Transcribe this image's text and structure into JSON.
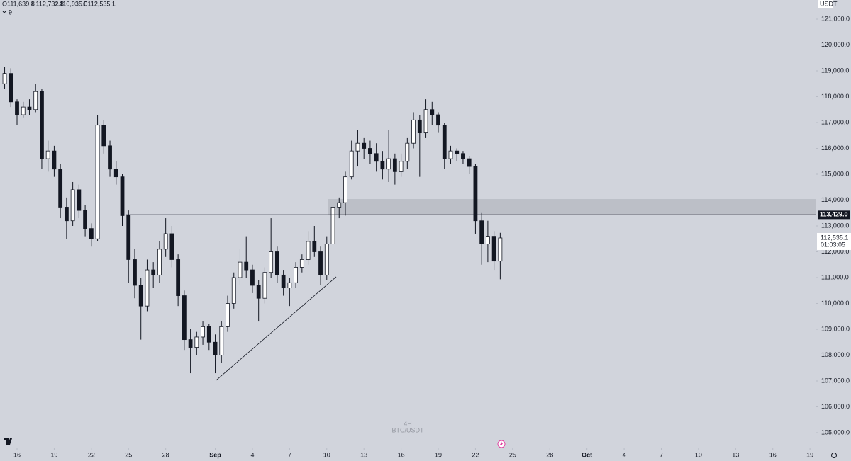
{
  "chart_data": {
    "type": "candlestick",
    "symbol": "BTC/USDT",
    "interval": "4H",
    "currency": "USDT",
    "header": [
      "O111,639.8",
      "H112,732.8",
      "L110,935.0",
      "C112,535.1"
    ],
    "indicator_count": "9",
    "x": [
      15,
      15.5,
      16,
      16.5,
      17,
      17.5,
      18,
      18.5,
      19,
      19.5,
      20,
      20.5,
      21,
      21.5,
      22,
      22.5,
      23,
      23.5,
      24,
      24.5,
      25,
      25.5,
      26,
      26.5,
      27,
      27.5,
      28,
      28.5,
      29,
      29.5,
      30,
      30.5,
      31,
      31.5,
      32,
      32.5,
      33,
      33.5,
      34,
      34.5,
      35,
      35.5,
      36,
      36.5,
      37,
      37.5,
      38,
      38.5,
      39,
      39.5,
      40,
      40.5,
      41,
      41.5,
      42,
      42.5,
      43,
      43.5,
      44,
      44.5,
      45,
      45.5,
      46,
      46.5,
      47,
      47.5,
      48,
      48.5,
      49,
      49.5,
      50,
      50.5,
      51,
      51.5,
      52,
      52.5,
      53,
      53.5,
      54,
      54.5,
      55
    ],
    "open": [
      118500,
      118900,
      117800,
      117300,
      117600,
      117500,
      118200,
      115600,
      115900,
      115200,
      113700,
      113200,
      114400,
      113600,
      112900,
      112500,
      116900,
      116100,
      115200,
      114900,
      113400,
      111700,
      110700,
      109900,
      111300,
      111100,
      112100,
      112700,
      111700,
      110300,
      108600,
      108300,
      108700,
      109100,
      108500,
      108000,
      109100,
      110000,
      111000,
      111600,
      111300,
      110700,
      110200,
      111200,
      112000,
      111100,
      110600,
      110800,
      111400,
      111700,
      112400,
      112000,
      111100,
      112300,
      113700,
      113900,
      114900,
      115900,
      116200,
      116000,
      115800,
      115500,
      115200,
      115600,
      115100,
      115500,
      116200,
      117100,
      116600,
      117500,
      117300,
      116900,
      115600,
      115900,
      115800,
      115600,
      115300,
      113200,
      112300,
      112600,
      111639.8
    ],
    "high": [
      119150,
      119100,
      117900,
      117800,
      117900,
      118500,
      118300,
      116300,
      116100,
      115400,
      114100,
      114700,
      114600,
      113800,
      113100,
      117300,
      117100,
      116300,
      115500,
      115000,
      113600,
      112100,
      111000,
      111700,
      111600,
      112400,
      113300,
      113000,
      111900,
      110500,
      109000,
      108900,
      109300,
      109200,
      108800,
      109300,
      110300,
      111200,
      112100,
      112600,
      111500,
      110900,
      111400,
      113300,
      112200,
      111300,
      111000,
      111600,
      111900,
      112800,
      113000,
      112200,
      112600,
      113900,
      114100,
      115100,
      116300,
      116700,
      116400,
      116300,
      116200,
      115900,
      116700,
      115800,
      115800,
      116400,
      117400,
      117300,
      117900,
      117800,
      117400,
      117000,
      116100,
      116000,
      115900,
      115700,
      115400,
      113500,
      113200,
      112800,
      112732.8
    ],
    "low": [
      118300,
      117600,
      116900,
      117200,
      117300,
      117400,
      115200,
      115100,
      114900,
      113300,
      112500,
      113000,
      113300,
      112600,
      112200,
      112400,
      115800,
      114900,
      114600,
      113000,
      110800,
      110200,
      108600,
      109700,
      110600,
      110800,
      111800,
      111400,
      109900,
      108200,
      107300,
      108000,
      108400,
      108200,
      107300,
      107700,
      108900,
      109800,
      110700,
      111000,
      110400,
      109300,
      110000,
      111000,
      110800,
      110300,
      109900,
      110600,
      111200,
      111500,
      111800,
      110700,
      110900,
      112200,
      113300,
      113400,
      114800,
      115300,
      115600,
      115400,
      115100,
      114800,
      114700,
      114600,
      114900,
      115200,
      116000,
      114900,
      116400,
      116900,
      116600,
      115200,
      115400,
      115500,
      115400,
      115000,
      112700,
      111500,
      111600,
      111300,
      110935.0
    ],
    "close": [
      118900,
      117800,
      117300,
      117600,
      117500,
      118200,
      115600,
      115900,
      115200,
      113700,
      113200,
      114400,
      113600,
      112900,
      112500,
      116900,
      116100,
      115200,
      114900,
      113400,
      111700,
      110700,
      109900,
      111300,
      111100,
      112100,
      112700,
      111700,
      110300,
      108600,
      108300,
      108700,
      109100,
      108500,
      108000,
      109100,
      110000,
      111000,
      111600,
      111300,
      110700,
      110200,
      111200,
      112000,
      111100,
      110600,
      110800,
      111400,
      111700,
      112400,
      112000,
      111100,
      112300,
      113700,
      113900,
      114900,
      115900,
      116200,
      116000,
      115800,
      115500,
      115200,
      115600,
      115100,
      115500,
      116200,
      117100,
      116600,
      117500,
      117300,
      116900,
      115600,
      115900,
      115800,
      115600,
      115300,
      113200,
      112300,
      112600,
      111639.8,
      112535.1
    ],
    "up_color": "#ffffff",
    "down_color": "#131722",
    "xlim": [
      14.626,
      80.45
    ],
    "xticks": [
      16,
      19,
      22,
      25,
      28,
      {
        "value": 32,
        "label": "Sep"
      },
      {
        "value": 35,
        "label": "4"
      },
      {
        "value": 38,
        "label": "7"
      },
      {
        "value": 41,
        "label": "10"
      },
      {
        "value": 44,
        "label": "13"
      },
      {
        "value": 47,
        "label": "16"
      },
      {
        "value": 50,
        "label": "19"
      },
      {
        "value": 53,
        "label": "22"
      },
      {
        "value": 56,
        "label": "25"
      },
      {
        "value": 59,
        "label": "28"
      },
      {
        "value": 62,
        "label": "Oct"
      },
      {
        "value": 65,
        "label": "4"
      },
      {
        "value": 68,
        "label": "7"
      },
      {
        "value": 71,
        "label": "10"
      },
      {
        "value": 74,
        "label": "13"
      },
      {
        "value": 77,
        "label": "16"
      },
      {
        "value": 80,
        "label": "19"
      }
    ],
    "ylim": [
      104425,
      121740
    ],
    "yticks": [
      {
        "value": 105000,
        "label": "105,000.0"
      },
      {
        "value": 106000,
        "label": "106,000.0"
      },
      {
        "value": 107000,
        "label": "107,000.0"
      },
      {
        "value": 108000,
        "label": "108,000.0"
      },
      {
        "value": 109000,
        "label": "109,000.0"
      },
      {
        "value": 110000,
        "label": "110,000.0"
      },
      {
        "value": 111000,
        "label": "111,000.0"
      },
      {
        "value": 112000,
        "label": "112,000.0"
      },
      {
        "value": 113000,
        "label": "113,000.0"
      },
      {
        "value": 114000,
        "label": "114,000.0"
      },
      {
        "value": 115000,
        "label": "115,000.0"
      },
      {
        "value": 116000,
        "label": "116,000.0"
      },
      {
        "value": 117000,
        "label": "117,000.0"
      },
      {
        "value": 118000,
        "label": "118,000.0"
      },
      {
        "value": 119000,
        "label": "119,000.0"
      },
      {
        "value": 120000,
        "label": "120,000.0"
      },
      {
        "value": 121000,
        "label": "121,000.0"
      }
    ],
    "hline": {
      "value": 113429,
      "label": "113,429.0",
      "x_start": 24.8
    },
    "zone": {
      "low": 113429,
      "high": 114040,
      "x_start": 41.07
    },
    "trendline": {
      "x": [
        32.08,
        41.76
      ],
      "y": [
        107030,
        111030
      ]
    },
    "last_price": {
      "value": 112535.1,
      "label": "112,535.1",
      "countdown": "01:03:05"
    }
  }
}
